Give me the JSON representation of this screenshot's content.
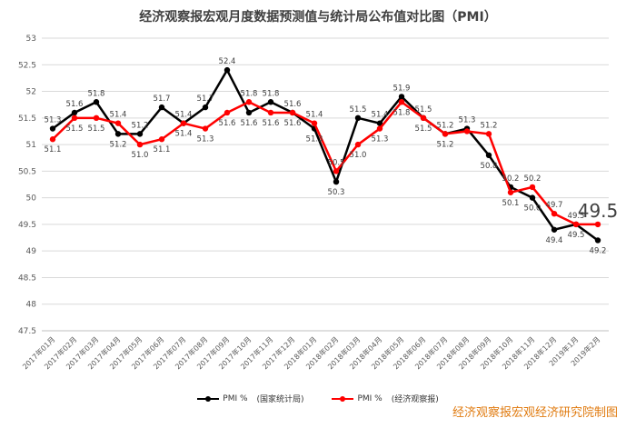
{
  "chart_data": {
    "type": "line",
    "title": "经济观察报宏观月度数据预测值与统计局公布值对比图（PMI）",
    "categories": [
      "2017年01月",
      "2017年02月",
      "2017年03月",
      "2017年04月",
      "2017年05月",
      "2017年06月",
      "2017年07月",
      "2017年08月",
      "2017年09月",
      "2017年10月",
      "2017年11月",
      "2017年12月",
      "2018年01月",
      "2018年02月",
      "2018年03月",
      "2018年04月",
      "2018年05月",
      "2018年06月",
      "2018年07月",
      "2018年08月",
      "2018年09月",
      "2018年10月",
      "2018年11月",
      "2018年12月",
      "2019年1月",
      "2019年2月"
    ],
    "series": [
      {
        "name": "PMI %",
        "note": "(国家统计局)",
        "color": "#000000",
        "values": [
          51.3,
          51.6,
          51.8,
          51.2,
          51.2,
          51.7,
          51.4,
          51.7,
          52.4,
          51.6,
          51.8,
          51.6,
          51.3,
          50.3,
          51.5,
          51.4,
          51.9,
          51.5,
          51.2,
          51.3,
          50.8,
          50.2,
          50.0,
          49.4,
          49.5,
          49.2
        ],
        "labels": [
          "51.3",
          "51.6",
          "51.8",
          "51.2",
          "51.2",
          "51.7",
          "51.4",
          "51.7",
          "52.4",
          "51.6",
          "51.8",
          "51.6",
          "51.3",
          "50.3",
          "51.5",
          "51.4",
          "51.9",
          "51.5",
          "51.2",
          "51.3",
          "50.8",
          "50.2",
          "50.0",
          "49.4",
          "49.5",
          "49.2"
        ]
      },
      {
        "name": "PMI %",
        "note": "(经济观察报)",
        "color": "#ff0000",
        "values": [
          51.1,
          51.5,
          51.5,
          51.4,
          51.0,
          51.1,
          51.4,
          51.3,
          51.6,
          51.8,
          51.6,
          51.6,
          51.4,
          50.5,
          51.0,
          51.3,
          51.8,
          51.5,
          51.2,
          51.25,
          51.2,
          50.1,
          50.2,
          49.7,
          49.5,
          49.5
        ],
        "labels": [
          "51.1",
          "51.5",
          "51.5",
          "51.4",
          "51.0",
          "51.1",
          "51.4",
          "51.3",
          "51.6",
          "51.8",
          "51.6",
          "51.6",
          "51.4",
          "50.5",
          "51.0",
          "51.3",
          "51.8",
          "51.5",
          "51.2",
          "",
          "51.2",
          "50.1",
          "50.2",
          "49.7",
          "49.5",
          "49.5"
        ]
      }
    ],
    "yticks": [
      "47.5",
      "48",
      "48.5",
      "49",
      "49.5",
      "50",
      "50.5",
      "51",
      "51.5",
      "52",
      "52.5",
      "53"
    ],
    "ylim": [
      47.5,
      53
    ],
    "grid": true,
    "legend_position": "bottom",
    "credit": "经济观察报宏观经济研究院制图"
  }
}
